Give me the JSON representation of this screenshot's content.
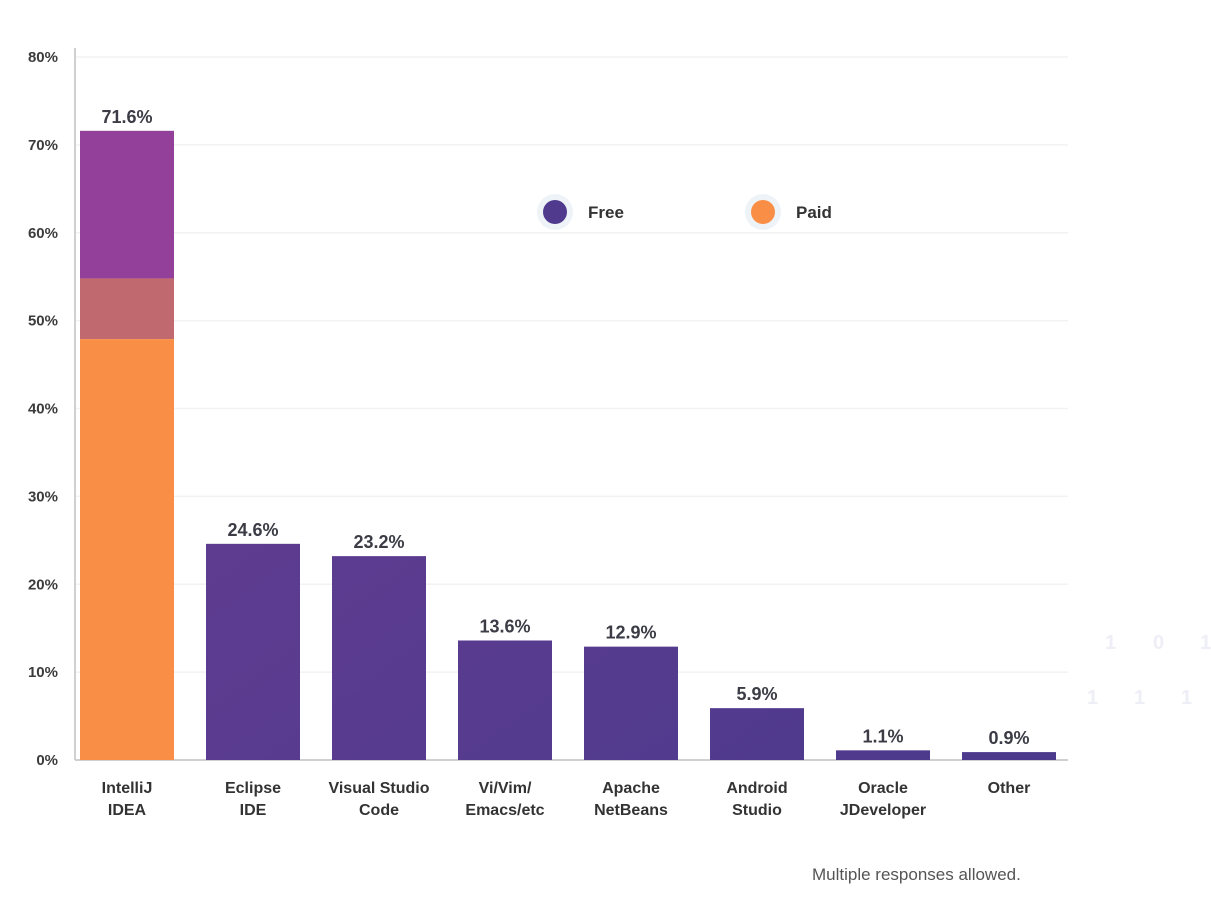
{
  "chart_data": {
    "type": "bar",
    "categories": [
      [
        "IntelliJ",
        "IDEA"
      ],
      [
        "Eclipse",
        "IDE"
      ],
      [
        "Visual Studio",
        "Code"
      ],
      [
        "Vi/Vim/",
        "Emacs/etc"
      ],
      [
        "Apache",
        "NetBeans"
      ],
      [
        "Android",
        "Studio"
      ],
      [
        "Oracle",
        "JDeveloper"
      ],
      [
        "Other"
      ]
    ],
    "values": [
      71.6,
      24.6,
      23.2,
      13.6,
      12.9,
      5.9,
      1.1,
      0.9
    ],
    "value_labels": [
      "71.6%",
      "24.6%",
      "23.2%",
      "13.6%",
      "12.9%",
      "5.9%",
      "1.1%",
      "0.9%"
    ],
    "intellij_split": {
      "paid_top": 54.8,
      "free_bottom": 47.9
    },
    "legend": [
      {
        "name": "Free",
        "color": "#4f3a8e"
      },
      {
        "name": "Paid",
        "color": "#f98f46"
      }
    ],
    "legend_position": "top-center",
    "ylim": [
      0,
      80
    ],
    "yticks": [
      "0%",
      "10%",
      "20%",
      "30%",
      "40%",
      "50%",
      "60%",
      "70%",
      "80%"
    ],
    "grid": true,
    "colors": {
      "free_top": "#6e3d93",
      "free_bottom": "#4a3a8c",
      "intellij_free": "#93409a",
      "overlap": "#c06a70",
      "paid": "#f98f46"
    }
  },
  "note": "Multiple responses allowed.",
  "watermark": [
    "1",
    "0",
    "1",
    "1",
    "1",
    "1"
  ]
}
